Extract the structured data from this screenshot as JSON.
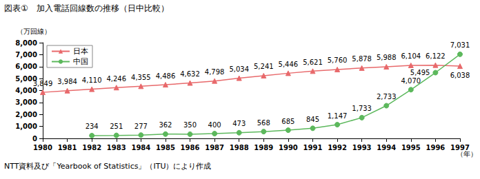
{
  "chart_data": {
    "type": "line",
    "title": "図表①　加入電話回線数の推移（日中比較）",
    "ylabel": "（万回線）",
    "xlabel": "（年）",
    "source": "NTT資料及び「Yearbook of Statistics」（ITU）により作成",
    "categories": [
      "1980",
      "1981",
      "1982",
      "1983",
      "1984",
      "1985",
      "1986",
      "1987",
      "1988",
      "1989",
      "1990",
      "1991",
      "1992",
      "1993",
      "1994",
      "1995",
      "1996",
      "1997"
    ],
    "series": [
      {
        "name": "日本",
        "color": "#e8696b",
        "marker": "triangle",
        "values": [
          3849,
          3984,
          4110,
          4246,
          4355,
          4486,
          4632,
          4798,
          5034,
          5241,
          5446,
          5621,
          5760,
          5878,
          5988,
          6104,
          6122,
          6038
        ],
        "value_labels": [
          "3,849",
          "3,984",
          "4,110",
          "4,246",
          "4,355",
          "4,486",
          "4,632",
          "4,798",
          "5,034",
          "5,241",
          "5,446",
          "5,621",
          "5,760",
          "5,878",
          "5,988",
          "6,104",
          "6,122",
          "6,038"
        ]
      },
      {
        "name": "中国",
        "color": "#5cb85c",
        "marker": "circle",
        "values": [
          null,
          null,
          234,
          251,
          277,
          362,
          350,
          400,
          473,
          568,
          685,
          845,
          1147,
          1733,
          2733,
          4070,
          5495,
          7031
        ],
        "value_labels": [
          null,
          null,
          "234",
          "251",
          "277",
          "362",
          "350",
          "400",
          "473",
          "568",
          "685",
          "845",
          "1,147",
          "1,733",
          "2,733",
          "4,070",
          "5,495",
          "7,031"
        ]
      }
    ],
    "ylim": [
      0,
      8000
    ],
    "yticks": [
      0,
      {
        "value": 1000,
        "label": "1,000"
      },
      {
        "value": 2000,
        "label": "2,000"
      },
      {
        "value": 3000,
        "label": "3,000"
      },
      {
        "value": 4000,
        "label": "4,000"
      },
      {
        "value": 5000,
        "label": "5,000"
      },
      {
        "value": 6000,
        "label": "6,000"
      },
      {
        "value": 7000,
        "label": "7,000"
      },
      {
        "value": 8000,
        "label": "8,000"
      }
    ],
    "grid": false,
    "legend": "top-left",
    "data_labels": true
  }
}
